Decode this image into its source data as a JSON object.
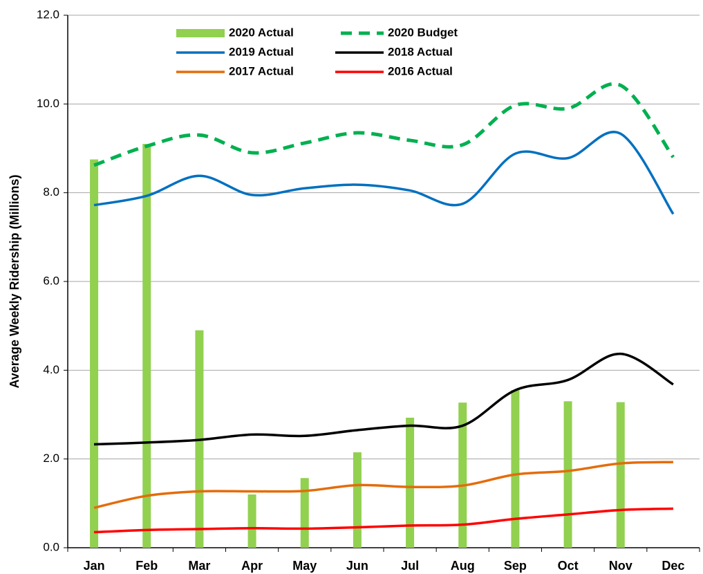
{
  "chart_data": {
    "type": "combo",
    "y_label": "Average Weekly Ridership (Millions)",
    "categories": [
      "Jan",
      "Feb",
      "Mar",
      "Apr",
      "May",
      "Jun",
      "Jul",
      "Aug",
      "Sep",
      "Oct",
      "Nov",
      "Dec"
    ],
    "ylim": [
      0,
      12
    ],
    "yticks": [
      {
        "value": 0,
        "label": "0.0"
      },
      {
        "value": 2,
        "label": "2.0"
      },
      {
        "value": 4,
        "label": "4.0"
      },
      {
        "value": 6,
        "label": "6.0"
      },
      {
        "value": 8,
        "label": "8.0"
      },
      {
        "value": 10,
        "label": "10.0"
      },
      {
        "value": 12,
        "label": "12.0"
      }
    ],
    "grid": true,
    "legend": "top",
    "series": [
      {
        "name": "2020 Actual",
        "type": "bar",
        "color": "#92d050",
        "values": [
          8.75,
          9.1,
          4.9,
          1.2,
          1.57,
          2.15,
          2.93,
          3.27,
          3.55,
          3.3,
          3.28,
          null
        ]
      },
      {
        "name": "2020 Budget",
        "type": "line",
        "dashed": true,
        "color": "#00b050",
        "values": [
          8.62,
          9.05,
          9.3,
          8.9,
          9.12,
          9.35,
          9.18,
          9.08,
          9.97,
          9.9,
          10.42,
          8.8
        ]
      },
      {
        "name": "2019 Actual",
        "type": "line",
        "color": "#0070c0",
        "values": [
          7.72,
          7.93,
          8.38,
          7.95,
          8.1,
          8.18,
          8.05,
          7.75,
          8.88,
          8.78,
          9.33,
          7.52
        ]
      },
      {
        "name": "2018 Actual",
        "type": "line",
        "color": "#000000",
        "values": [
          2.33,
          2.37,
          2.43,
          2.55,
          2.52,
          2.65,
          2.75,
          2.75,
          3.55,
          3.78,
          4.37,
          3.68
        ]
      },
      {
        "name": "2017 Actual",
        "type": "line",
        "color": "#e46c0a",
        "values": [
          0.9,
          1.17,
          1.27,
          1.27,
          1.28,
          1.41,
          1.37,
          1.4,
          1.65,
          1.73,
          1.9,
          1.93
        ]
      },
      {
        "name": "2016 Actual",
        "type": "line",
        "color": "#ff0000",
        "values": [
          0.35,
          0.4,
          0.42,
          0.44,
          0.43,
          0.46,
          0.5,
          0.52,
          0.65,
          0.75,
          0.85,
          0.88
        ]
      }
    ]
  }
}
